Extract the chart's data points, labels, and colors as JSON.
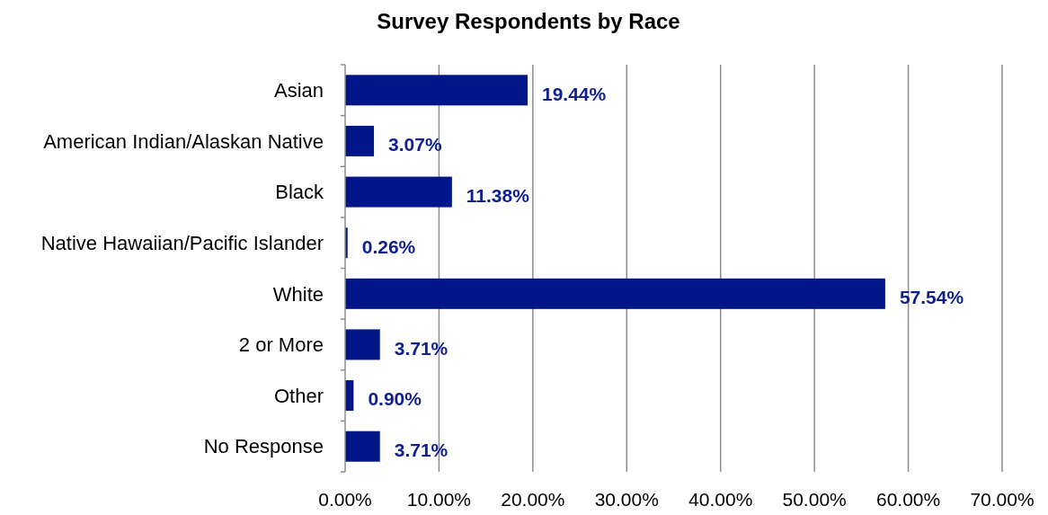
{
  "chart_data": {
    "type": "bar",
    "orientation": "horizontal",
    "title": "Survey Respondents by Race",
    "categories": [
      "Asian",
      "American Indian/Alaskan Native",
      "Black",
      "Native Hawaiian/Pacific Islander",
      "White",
      "2 or More",
      "Other",
      "No Response"
    ],
    "values": [
      19.44,
      3.07,
      11.38,
      0.26,
      57.54,
      3.71,
      0.9,
      3.71
    ],
    "value_labels": [
      "19.44%",
      "3.07%",
      "11.38%",
      "0.26%",
      "57.54%",
      "3.71%",
      "0.90%",
      "3.71%"
    ],
    "color": "#001689",
    "xlim": [
      0,
      70
    ],
    "xticks": [
      {
        "value": 0,
        "label": "0.00%"
      },
      {
        "value": 10,
        "label": "10.00%"
      },
      {
        "value": 20,
        "label": "20.00%"
      },
      {
        "value": 30,
        "label": "30.00%"
      },
      {
        "value": 40,
        "label": "40.00%"
      },
      {
        "value": 50,
        "label": "50.00%"
      },
      {
        "value": 60,
        "label": "60.00%"
      },
      {
        "value": 70,
        "label": "70.00%"
      }
    ],
    "grid": "x"
  }
}
